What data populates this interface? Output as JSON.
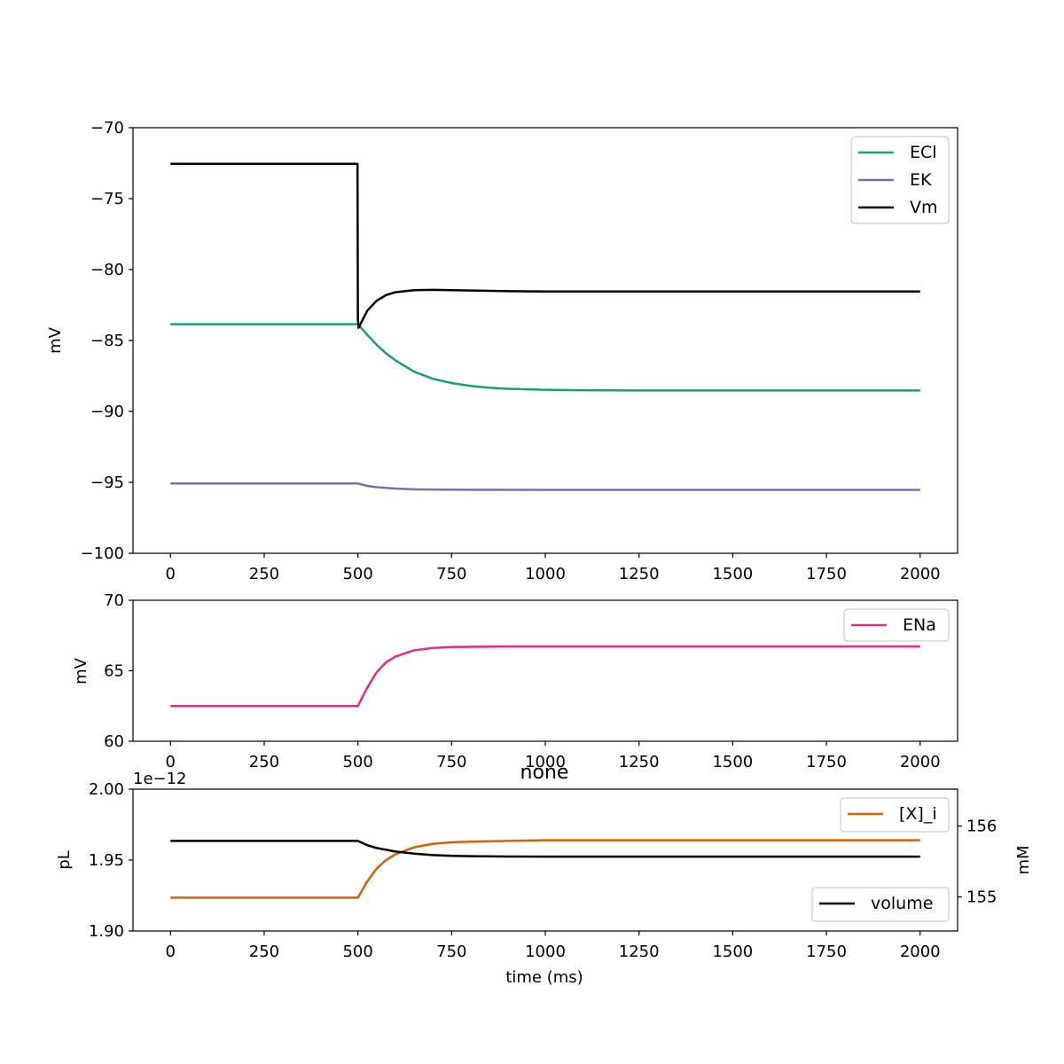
{
  "chart_data": [
    {
      "type": "line",
      "title": "",
      "xlabel": "",
      "ylabel": "mV",
      "xlim": [
        -100,
        2100
      ],
      "ylim": [
        -100,
        -70
      ],
      "xticks": [
        0,
        250,
        500,
        750,
        1000,
        1250,
        1500,
        1750,
        2000
      ],
      "yticks": [
        -100,
        -95,
        -90,
        -85,
        -80,
        -75,
        -70
      ],
      "legend_position": "upper-right",
      "series": [
        {
          "name": "ECl",
          "color": "#1b9e77",
          "x": [
            0,
            500,
            525,
            550,
            575,
            600,
            650,
            700,
            750,
            800,
            850,
            900,
            1000,
            1100,
            1250,
            1500,
            2000
          ],
          "y": [
            -83.85,
            -83.85,
            -84.6,
            -85.3,
            -85.9,
            -86.4,
            -87.2,
            -87.7,
            -88.0,
            -88.2,
            -88.33,
            -88.41,
            -88.48,
            -88.51,
            -88.52,
            -88.52,
            -88.52
          ]
        },
        {
          "name": "EK",
          "color": "#7570b3",
          "x": [
            0,
            500,
            525,
            550,
            600,
            650,
            700,
            800,
            1000,
            2000
          ],
          "y": [
            -95.08,
            -95.08,
            -95.25,
            -95.34,
            -95.44,
            -95.49,
            -95.51,
            -95.52,
            -95.53,
            -95.53
          ]
        },
        {
          "name": "Vm",
          "color": "#000000",
          "x": [
            0,
            499,
            500,
            502,
            525,
            550,
            575,
            600,
            650,
            700,
            750,
            800,
            900,
            1000,
            1500,
            2000
          ],
          "y": [
            -72.55,
            -72.55,
            -83.5,
            -84.1,
            -82.9,
            -82.2,
            -81.8,
            -81.6,
            -81.45,
            -81.43,
            -81.45,
            -81.48,
            -81.52,
            -81.55,
            -81.55,
            -81.55
          ]
        }
      ]
    },
    {
      "type": "line",
      "title": "",
      "xlabel": "",
      "ylabel": "mV",
      "xlim": [
        -100,
        2100
      ],
      "ylim": [
        60,
        70
      ],
      "xticks": [
        0,
        250,
        500,
        750,
        1000,
        1250,
        1500,
        1750,
        2000
      ],
      "yticks": [
        60,
        65,
        70
      ],
      "legend_position": "upper-right",
      "series": [
        {
          "name": "ENa",
          "color": "#e7298a",
          "x": [
            0,
            500,
            525,
            550,
            575,
            600,
            650,
            700,
            750,
            800,
            900,
            1000,
            1500,
            2000
          ],
          "y": [
            62.5,
            62.5,
            63.8,
            64.9,
            65.6,
            66.0,
            66.45,
            66.62,
            66.68,
            66.7,
            66.72,
            66.72,
            66.72,
            66.72
          ]
        }
      ]
    },
    {
      "type": "line",
      "title": "none",
      "xlabel": "time (ms)",
      "ylabel": "pL",
      "y_offset_text": "1e−12",
      "xlim": [
        -100,
        2100
      ],
      "ylim": [
        1.9,
        2.0
      ],
      "xticks": [
        0,
        250,
        500,
        750,
        1000,
        1250,
        1500,
        1750,
        2000
      ],
      "yticks": [
        1.9,
        1.95,
        2.0
      ],
      "ytick_labels": [
        "1.90",
        "1.95",
        "2.00"
      ],
      "legend_position": "lower-right",
      "series": [
        {
          "name": "volume",
          "color": "#000000",
          "x": [
            0,
            500,
            525,
            550,
            600,
            650,
            700,
            750,
            800,
            900,
            1000,
            1500,
            2000
          ],
          "y": [
            1.9635,
            1.9635,
            1.9605,
            1.9585,
            1.956,
            1.9545,
            1.9535,
            1.953,
            1.9527,
            1.9525,
            1.9524,
            1.9524,
            1.9524
          ]
        }
      ],
      "secondary_y": {
        "ylabel": "mM",
        "ylim": [
          154.52,
          156.52
        ],
        "yticks": [
          155,
          156
        ],
        "legend_position": "upper-right",
        "series": [
          {
            "name": "[X]_i",
            "color": "#d95f02",
            "x": [
              0,
              500,
              525,
              550,
              575,
              600,
              650,
              700,
              750,
              800,
              900,
              1000,
              1500,
              2000
            ],
            "y": [
              154.99,
              154.99,
              155.22,
              155.4,
              155.52,
              155.6,
              155.7,
              155.75,
              155.77,
              155.78,
              155.79,
              155.8,
              155.8,
              155.8
            ]
          }
        ]
      }
    }
  ]
}
